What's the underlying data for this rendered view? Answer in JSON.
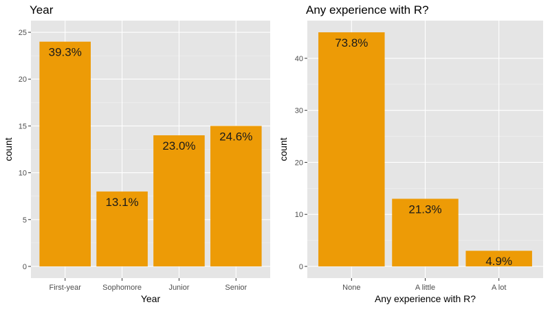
{
  "chart_data": [
    {
      "type": "bar",
      "title": "Year",
      "xlabel": "Year",
      "ylabel": "count",
      "categories": [
        "First-year",
        "Sophomore",
        "Junior",
        "Senior"
      ],
      "values": [
        24,
        8,
        14,
        15
      ],
      "data_labels": [
        "39.3%",
        "13.1%",
        "23.0%",
        "24.6%"
      ],
      "yticks": [
        0,
        5,
        10,
        15,
        20,
        25
      ],
      "ylim": [
        0,
        25
      ],
      "bar_color": "#ED9B06",
      "panel_color": "#E5E5E5",
      "grid": true
    },
    {
      "type": "bar",
      "title": "Any experience with R?",
      "xlabel": "Any experience with R?",
      "ylabel": "count",
      "categories": [
        "None",
        "A little",
        "A lot"
      ],
      "values": [
        45,
        13,
        3
      ],
      "data_labels": [
        "73.8%",
        "21.3%",
        "4.9%"
      ],
      "yticks": [
        0,
        10,
        20,
        30,
        40
      ],
      "ylim": [
        0,
        45
      ],
      "bar_color": "#ED9B06",
      "panel_color": "#E5E5E5",
      "grid": true
    }
  ]
}
